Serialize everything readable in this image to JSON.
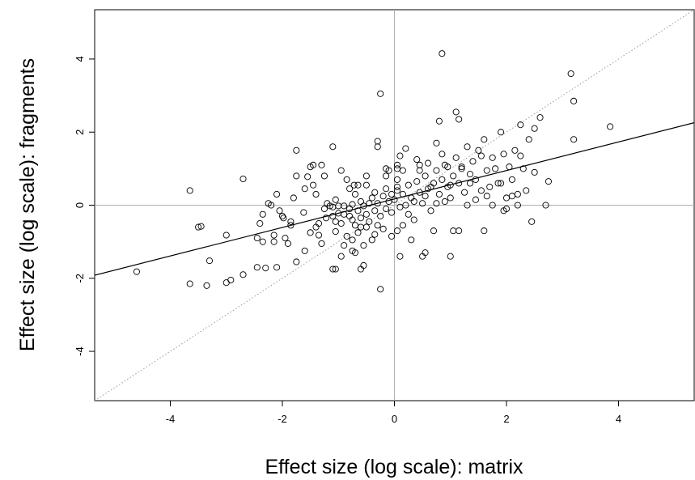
{
  "chart_data": {
    "type": "scatter",
    "xlabel": "Effect size (log scale): matrix",
    "ylabel": "Effect size (log scale): fragments",
    "xlim": [
      -5.35,
      5.35
    ],
    "ylim": [
      -5.35,
      5.35
    ],
    "x_ticks": [
      -4,
      -2,
      0,
      2,
      4
    ],
    "y_ticks": [
      -4,
      -2,
      0,
      2,
      4
    ],
    "reference_lines": {
      "horizontal_zero": true,
      "vertical_zero": true,
      "identity_dotted": true
    },
    "regression_line": {
      "slope": 0.39,
      "intercept": 0.17
    },
    "colors": {
      "points": "#000000",
      "zero_lines": "#b0b0b0",
      "identity": "#9a9a9a",
      "regression": "#000000"
    },
    "points": [
      [
        -4.6,
        -1.82
      ],
      [
        -3.65,
        0.4
      ],
      [
        -3.65,
        -2.15
      ],
      [
        -3.5,
        -0.6
      ],
      [
        -3.45,
        -0.58
      ],
      [
        -3.35,
        -2.2
      ],
      [
        -3.3,
        -1.52
      ],
      [
        -3.0,
        -0.82
      ],
      [
        -3.0,
        -2.12
      ],
      [
        -2.92,
        -2.05
      ],
      [
        -2.7,
        0.72
      ],
      [
        -2.7,
        -1.9
      ],
      [
        -2.45,
        -0.9
      ],
      [
        -2.45,
        -1.7
      ],
      [
        -2.4,
        -0.5
      ],
      [
        -2.35,
        -0.25
      ],
      [
        -2.35,
        -1.0
      ],
      [
        -2.3,
        -1.72
      ],
      [
        -2.2,
        0.0
      ],
      [
        -2.15,
        -0.82
      ],
      [
        -2.15,
        -1.0
      ],
      [
        -2.1,
        0.3
      ],
      [
        -2.1,
        -1.7
      ],
      [
        -2.05,
        -0.15
      ],
      [
        -2.0,
        -0.3
      ],
      [
        -1.98,
        -0.35
      ],
      [
        -1.95,
        -0.9
      ],
      [
        -1.9,
        -1.05
      ],
      [
        -1.85,
        -0.55
      ],
      [
        -1.8,
        0.2
      ],
      [
        -1.75,
        1.5
      ],
      [
        -1.75,
        0.8
      ],
      [
        -1.75,
        -1.55
      ],
      [
        -1.62,
        -0.2
      ],
      [
        -1.6,
        -1.25
      ],
      [
        -1.55,
        0.78
      ],
      [
        -1.5,
        1.05
      ],
      [
        -1.5,
        -0.75
      ],
      [
        -1.45,
        0.55
      ],
      [
        -1.45,
        1.1
      ],
      [
        -1.4,
        0.3
      ],
      [
        -1.4,
        -0.6
      ],
      [
        -1.35,
        -0.5
      ],
      [
        -1.35,
        -0.82
      ],
      [
        -1.3,
        1.1
      ],
      [
        -1.3,
        -1.05
      ],
      [
        -1.25,
        0.8
      ],
      [
        -1.25,
        -0.1
      ],
      [
        -1.22,
        -0.35
      ],
      [
        -1.2,
        0.05
      ],
      [
        -1.15,
        -0.02
      ],
      [
        -1.1,
        1.6
      ],
      [
        -1.1,
        -0.05
      ],
      [
        -1.1,
        -0.3
      ],
      [
        -1.05,
        0.15
      ],
      [
        -1.05,
        -0.45
      ],
      [
        -1.05,
        -0.72
      ],
      [
        -1.0,
        -0.02
      ],
      [
        -1.0,
        -0.22
      ],
      [
        -0.95,
        -0.5
      ],
      [
        -0.95,
        0.95
      ],
      [
        -0.9,
        -0.02
      ],
      [
        -0.9,
        -0.25
      ],
      [
        -0.85,
        0.7
      ],
      [
        -0.85,
        -0.85
      ],
      [
        -0.8,
        -0.1
      ],
      [
        -0.8,
        -0.3
      ],
      [
        -0.75,
        0.02
      ],
      [
        -0.75,
        -0.4
      ],
      [
        -0.75,
        -1.25
      ],
      [
        -0.72,
        0.55
      ],
      [
        -0.7,
        0.3
      ],
      [
        -0.7,
        -0.55
      ],
      [
        -0.65,
        -0.15
      ],
      [
        -0.65,
        -0.75
      ],
      [
        -0.6,
        0.1
      ],
      [
        -0.6,
        -0.35
      ],
      [
        -0.55,
        -0.02
      ],
      [
        -0.55,
        -1.1
      ],
      [
        -0.5,
        0.55
      ],
      [
        -0.5,
        -0.25
      ],
      [
        -0.5,
        -0.6
      ],
      [
        -0.45,
        0.05
      ],
      [
        -0.45,
        -0.45
      ],
      [
        -0.4,
        0.2
      ],
      [
        -0.4,
        -0.95
      ],
      [
        -0.35,
        -0.15
      ],
      [
        -0.35,
        0.35
      ],
      [
        -0.3,
        0.05
      ],
      [
        -0.3,
        -0.55
      ],
      [
        -0.25,
        -0.3
      ],
      [
        -0.2,
        0.25
      ],
      [
        -0.15,
        0.45
      ],
      [
        -0.1,
        0.1
      ],
      [
        -0.05,
        -0.2
      ],
      [
        0.0,
        0.15
      ],
      [
        0.05,
        0.4
      ],
      [
        0.1,
        -0.05
      ],
      [
        0.15,
        0.3
      ],
      [
        0.2,
        0.0
      ],
      [
        0.25,
        0.55
      ],
      [
        0.3,
        0.2
      ],
      [
        0.35,
        -0.4
      ],
      [
        0.4,
        0.65
      ],
      [
        0.45,
        0.35
      ],
      [
        0.5,
        0.05
      ],
      [
        0.55,
        0.8
      ],
      [
        0.6,
        0.45
      ],
      [
        0.65,
        -0.15
      ],
      [
        0.7,
        0.6
      ],
      [
        0.75,
        0.95
      ],
      [
        0.8,
        0.3
      ],
      [
        0.85,
        0.7
      ],
      [
        0.9,
        1.1
      ],
      [
        0.95,
        0.5
      ],
      [
        1.0,
        0.2
      ],
      [
        1.05,
        0.8
      ],
      [
        1.1,
        1.3
      ],
      [
        1.15,
        0.6
      ],
      [
        1.2,
        1.0
      ],
      [
        1.25,
        0.35
      ],
      [
        1.3,
        1.6
      ],
      [
        1.35,
        0.85
      ],
      [
        1.4,
        1.2
      ],
      [
        1.45,
        0.7
      ],
      [
        1.5,
        1.5
      ],
      [
        1.55,
        0.4
      ],
      [
        1.6,
        1.8
      ],
      [
        1.65,
        0.95
      ],
      [
        1.7,
        0.5
      ],
      [
        1.75,
        1.3
      ],
      [
        1.8,
        1.0
      ],
      [
        1.85,
        0.6
      ],
      [
        1.9,
        2.0
      ],
      [
        1.95,
        1.4
      ],
      [
        2.0,
        0.2
      ],
      [
        2.05,
        1.05
      ],
      [
        2.1,
        0.7
      ],
      [
        2.15,
        1.5
      ],
      [
        2.2,
        0.0
      ],
      [
        2.25,
        2.2
      ],
      [
        2.3,
        1.0
      ],
      [
        2.35,
        0.4
      ],
      [
        2.4,
        1.8
      ],
      [
        2.5,
        0.9
      ],
      [
        2.6,
        2.4
      ],
      [
        2.7,
        0.0
      ],
      [
        2.75,
        0.65
      ],
      [
        3.15,
        3.6
      ],
      [
        3.2,
        2.85
      ],
      [
        3.2,
        1.8
      ],
      [
        3.85,
        2.15
      ],
      [
        0.85,
        4.15
      ],
      [
        -0.25,
        3.05
      ],
      [
        -0.3,
        1.75
      ],
      [
        -0.3,
        1.6
      ],
      [
        -0.25,
        -2.3
      ],
      [
        1.0,
        -1.4
      ],
      [
        0.55,
        -1.3
      ],
      [
        0.5,
        -1.4
      ],
      [
        0.1,
        -1.4
      ],
      [
        -0.05,
        -0.85
      ],
      [
        0.05,
        -0.7
      ],
      [
        0.15,
        0.95
      ],
      [
        0.2,
        1.55
      ],
      [
        0.1,
        1.35
      ],
      [
        0.05,
        1.1
      ],
      [
        0.05,
        0.7
      ],
      [
        -0.1,
        0.95
      ],
      [
        -0.15,
        0.8
      ],
      [
        0.3,
        -0.95
      ],
      [
        0.45,
        0.95
      ],
      [
        0.6,
        1.15
      ],
      [
        0.75,
        1.7
      ],
      [
        0.8,
        2.3
      ],
      [
        1.1,
        2.55
      ],
      [
        1.15,
        2.35
      ],
      [
        0.4,
        1.25
      ],
      [
        0.65,
        0.5
      ],
      [
        0.95,
        1.05
      ],
      [
        1.05,
        -0.7
      ],
      [
        1.15,
        -0.7
      ],
      [
        1.2,
        1.05
      ],
      [
        1.3,
        0.0
      ],
      [
        1.55,
        1.35
      ],
      [
        1.6,
        -0.7
      ],
      [
        1.65,
        0.25
      ],
      [
        1.75,
        0.0
      ],
      [
        1.9,
        0.6
      ],
      [
        1.95,
        -0.15
      ],
      [
        2.0,
        -0.1
      ],
      [
        2.1,
        0.25
      ],
      [
        2.2,
        0.3
      ],
      [
        2.25,
        1.35
      ],
      [
        2.45,
        -0.45
      ],
      [
        2.5,
        2.1
      ],
      [
        1.45,
        0.15
      ],
      [
        1.35,
        0.6
      ],
      [
        1.0,
        0.55
      ],
      [
        0.9,
        0.1
      ],
      [
        0.75,
        0.05
      ],
      [
        0.7,
        -0.7
      ],
      [
        0.55,
        0.25
      ],
      [
        0.35,
        0.1
      ],
      [
        0.25,
        -0.25
      ],
      [
        0.15,
        -0.55
      ],
      [
        0.05,
        0.5
      ],
      [
        -0.05,
        0.3
      ],
      [
        -0.15,
        -0.1
      ],
      [
        -0.2,
        -0.65
      ],
      [
        -0.35,
        -0.8
      ],
      [
        -0.5,
        0.8
      ],
      [
        -0.6,
        -0.6
      ],
      [
        -0.65,
        0.55
      ],
      [
        -0.8,
        0.45
      ],
      [
        -0.9,
        -1.1
      ],
      [
        -0.95,
        -1.4
      ],
      [
        -1.05,
        -1.75
      ],
      [
        -1.1,
        -1.75
      ],
      [
        -0.55,
        -1.65
      ],
      [
        -0.6,
        -1.75
      ],
      [
        -0.7,
        -1.3
      ],
      [
        -0.75,
        -0.95
      ],
      [
        -0.15,
        1.0
      ],
      [
        0.05,
        1.0
      ],
      [
        0.45,
        1.1
      ],
      [
        0.85,
        1.4
      ],
      [
        -1.6,
        0.45
      ],
      [
        -2.25,
        0.05
      ],
      [
        -1.85,
        -0.45
      ]
    ]
  }
}
